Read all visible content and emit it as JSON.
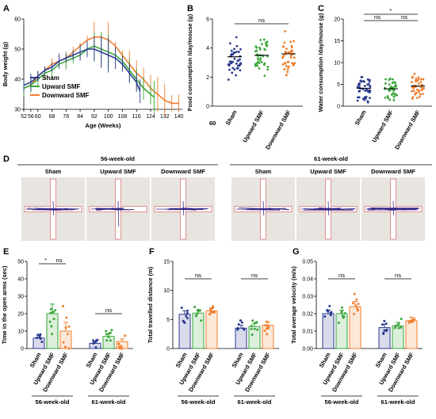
{
  "colors": {
    "sham": "#2b3a8f",
    "upward": "#3aa63a",
    "downward": "#f07f2e",
    "arena": "#e8e4df",
    "arm_edge": "#d86a6a",
    "track": "#3b2a8a"
  },
  "panels": {
    "A": "A",
    "B": "B",
    "C": "C",
    "D": "D",
    "E": "E",
    "F": "F",
    "G": "G"
  },
  "groups": [
    "Sham",
    "Upward SMF",
    "Downward SMF"
  ],
  "ages": [
    "56-week-old",
    "61-week-old"
  ],
  "stray_label": "60",
  "chart_data": [
    {
      "panel": "A",
      "type": "line",
      "xlabel": "Age (Weeks)",
      "ylabel": "Body weight (g)",
      "xlim": [
        52,
        142
      ],
      "ylim": [
        30,
        60
      ],
      "xticks": [
        "52",
        "56",
        "60",
        "68",
        "76",
        "84",
        "92",
        "100",
        "108",
        "116",
        "124",
        "132",
        "140"
      ],
      "yticks": [
        "30",
        "40",
        "50",
        "60"
      ],
      "legend": [
        "Sham",
        "Upward SMF",
        "Downward SMF"
      ],
      "legend_position": "center-left",
      "series": [
        {
          "name": "Sham",
          "x": [
            52,
            56,
            60,
            64,
            68,
            72,
            76,
            80,
            84,
            88,
            92,
            96,
            100,
            104,
            108,
            112,
            116,
            118
          ],
          "y": [
            38,
            39,
            41,
            43,
            44,
            46,
            47,
            48,
            49,
            50,
            50,
            49,
            48,
            47,
            45,
            42,
            39,
            36
          ]
        },
        {
          "name": "Upward SMF",
          "x": [
            52,
            56,
            60,
            64,
            68,
            72,
            76,
            80,
            84,
            88,
            92,
            96,
            100,
            104,
            108,
            112,
            116,
            120,
            124,
            126
          ],
          "y": [
            37,
            38,
            40,
            42,
            43,
            45,
            46,
            47,
            48,
            50,
            51,
            50,
            49,
            48,
            46,
            43,
            40,
            37,
            35,
            34
          ]
        },
        {
          "name": "Downward SMF",
          "x": [
            52,
            56,
            60,
            64,
            68,
            72,
            76,
            80,
            84,
            88,
            92,
            96,
            100,
            104,
            108,
            112,
            116,
            120,
            124,
            128,
            132,
            136,
            140
          ],
          "y": [
            37,
            38,
            41,
            43,
            45,
            46,
            47,
            49,
            51,
            53,
            54,
            54,
            53,
            51,
            48,
            45,
            42,
            40,
            37,
            35,
            33,
            32,
            32
          ]
        }
      ]
    },
    {
      "panel": "B",
      "type": "scatter",
      "ylabel": "Food consumption /day/mouse (g)",
      "ylim": [
        0,
        6
      ],
      "yticks": [
        "0",
        "2",
        "4",
        "6"
      ],
      "categories": [
        "Sham",
        "Upward SMF",
        "Downward SMF"
      ],
      "means": [
        3.4,
        3.5,
        3.6
      ],
      "annotations": [
        {
          "from": 0,
          "to": 2,
          "text": "ns"
        }
      ]
    },
    {
      "panel": "C",
      "type": "scatter",
      "ylabel": "Water consumption /day/mouse (g)",
      "ylim": [
        0,
        20
      ],
      "yticks": [
        "0",
        "5",
        "10",
        "15",
        "20"
      ],
      "categories": [
        "Sham",
        "Upward SMF",
        "Downward SMF"
      ],
      "means": [
        4.1,
        4.0,
        4.6
      ],
      "annotations": [
        {
          "from": 0,
          "to": 2,
          "text": "*"
        },
        {
          "from": 0,
          "to": 1,
          "text": "ns"
        },
        {
          "from": 1,
          "to": 2,
          "text": "ns"
        }
      ]
    },
    {
      "panel": "E",
      "type": "bar",
      "ylabel": "Time in the open arms (sec)",
      "ylim": [
        0,
        50
      ],
      "yticks": [
        "0",
        "10",
        "20",
        "30",
        "40",
        "50"
      ],
      "categories": [
        "Sham",
        "Upward SMF",
        "Downward SMF"
      ],
      "groups": [
        "56-week-old",
        "61-week-old"
      ],
      "series": [
        {
          "group": "56-week-old",
          "values": [
            6,
            20,
            10
          ],
          "err": [
            1.5,
            5.5,
            5
          ]
        },
        {
          "group": "61-week-old",
          "values": [
            3,
            7,
            4
          ],
          "err": [
            1,
            1.5,
            1.5
          ]
        }
      ],
      "annotations": [
        {
          "group": 0,
          "from": 0,
          "to": 1,
          "text": "*"
        },
        {
          "group": 0,
          "from": 1,
          "to": 2,
          "text": "ns"
        },
        {
          "group": 1,
          "from": 0,
          "to": 2,
          "text": "ns"
        }
      ]
    },
    {
      "panel": "F",
      "type": "bar",
      "ylabel": "Total travelled distance (m)",
      "ylim": [
        0,
        15
      ],
      "yticks": [
        "0",
        "5",
        "10",
        "15"
      ],
      "categories": [
        "Sham",
        "Upward SMF",
        "Downward SMF"
      ],
      "groups": [
        "56-week-old",
        "61-week-old"
      ],
      "series": [
        {
          "group": "56-week-old",
          "values": [
            5.9,
            6.1,
            6.5
          ],
          "err": [
            0.6,
            0.5,
            0.5
          ]
        },
        {
          "group": "61-week-old",
          "values": [
            3.5,
            3.8,
            4.0
          ],
          "err": [
            0.5,
            0.5,
            0.6
          ]
        }
      ],
      "annotations": [
        {
          "group": 0,
          "from": 0,
          "to": 2,
          "text": "ns"
        },
        {
          "group": 1,
          "from": 0,
          "to": 2,
          "text": "ns"
        }
      ]
    },
    {
      "panel": "G",
      "type": "bar",
      "ylabel": "Total average velocity (m/s)",
      "ylim": [
        0,
        0.05
      ],
      "yticks": [
        "0.00",
        "0.01",
        "0.02",
        "0.03",
        "0.04",
        "0.05"
      ],
      "categories": [
        "Sham",
        "Upward SMF",
        "Downward SMF"
      ],
      "groups": [
        "56-week-old",
        "61-week-old"
      ],
      "series": [
        {
          "group": "56-week-old",
          "values": [
            0.02,
            0.02,
            0.024
          ],
          "err": [
            0.002,
            0.002,
            0.003
          ]
        },
        {
          "group": "61-week-old",
          "values": [
            0.012,
            0.013,
            0.016
          ],
          "err": [
            0.002,
            0.002,
            0.002
          ]
        }
      ],
      "annotations": [
        {
          "group": 0,
          "from": 0,
          "to": 2,
          "text": "ns"
        },
        {
          "group": 1,
          "from": 0,
          "to": 2,
          "text": "ns"
        }
      ]
    }
  ]
}
